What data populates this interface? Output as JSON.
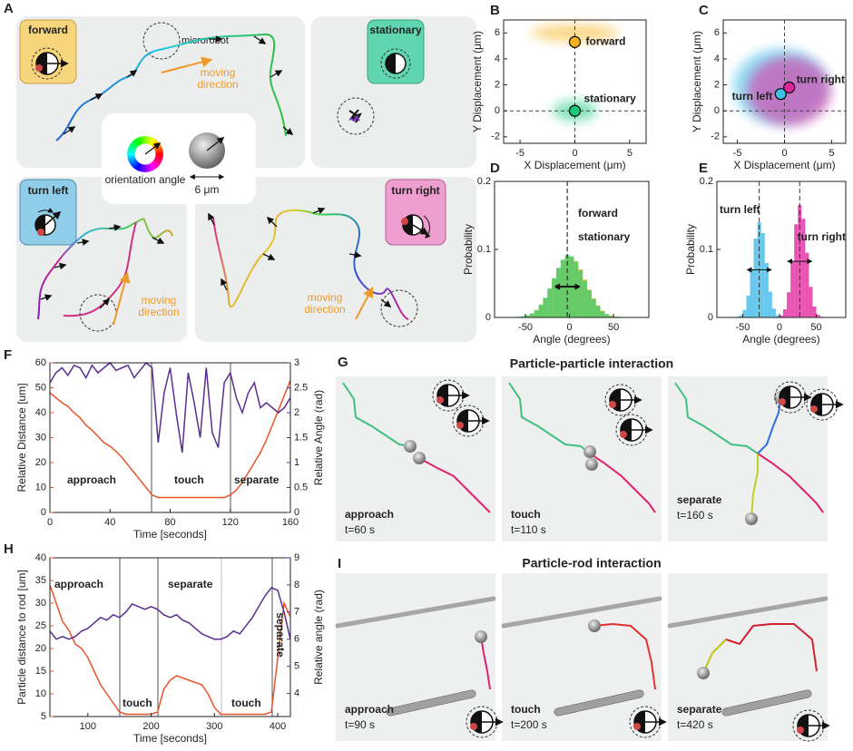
{
  "figure_a": {
    "panel": "A",
    "forward": "forward",
    "microrobot": "microrobot",
    "moving_direction": [
      "moving direction",
      "moving direction",
      "moving direction"
    ],
    "stationary": "stationary",
    "legend": {
      "orientation": "orientation angle",
      "size": "6 μm"
    },
    "turn_left": "turn left",
    "turn_right": "turn right"
  },
  "chart_data": [
    {
      "panel": "B",
      "type": "scatter",
      "xlabel": "X Displacement (μm)",
      "ylabel": "Y Displacement (μm)",
      "xlim": [
        -6.5,
        6.5
      ],
      "ylim": [
        -2.5,
        7
      ],
      "xticks": [
        -5,
        0,
        5
      ],
      "yticks": [
        -2,
        0,
        2,
        4,
        6
      ],
      "series": [
        {
          "name": "forward",
          "color": "#f5b41e",
          "x": [
            0
          ],
          "values": [
            5.3
          ]
        },
        {
          "name": "stationary",
          "color": "#19c97a",
          "x": [
            0
          ],
          "values": [
            0
          ]
        }
      ]
    },
    {
      "panel": "C",
      "type": "scatter",
      "xlabel": "X Displacement (μm)",
      "ylabel": "Y Displacement (μm)",
      "xlim": [
        -6.5,
        6.5
      ],
      "ylim": [
        -2.5,
        7
      ],
      "xticks": [
        -5,
        0,
        5
      ],
      "yticks": [
        -2,
        0,
        2,
        4,
        6
      ],
      "series": [
        {
          "name": "turn left",
          "color": "#3cc0e8",
          "x": [
            -0.4
          ],
          "values": [
            1.3
          ]
        },
        {
          "name": "turn right",
          "color": "#e0259c",
          "x": [
            0.5
          ],
          "values": [
            1.8
          ]
        }
      ]
    },
    {
      "panel": "D",
      "type": "histogram",
      "xlabel": "Angle (degrees)",
      "ylabel": "Probability",
      "xlim": [
        -85,
        90
      ],
      "ylim": [
        0,
        0.2
      ],
      "xticks": [
        -50,
        0,
        50
      ],
      "yticks": [
        0,
        0.1,
        0.2
      ],
      "bins": [
        -80,
        -75,
        -70,
        -65,
        -60,
        -55,
        -50,
        -45,
        -40,
        -35,
        -30,
        -25,
        -20,
        -15,
        -10,
        -5,
        0,
        5,
        10,
        15,
        20,
        25,
        30,
        35,
        40,
        45,
        50,
        55,
        60,
        65,
        70,
        75,
        80
      ],
      "series": [
        {
          "name": "forward",
          "color": "#f5b41e",
          "values": [
            0,
            0,
            0,
            0,
            0.001,
            0.001,
            0.003,
            0.005,
            0.01,
            0.018,
            0.028,
            0.041,
            0.056,
            0.071,
            0.083,
            0.089,
            0.089,
            0.083,
            0.071,
            0.056,
            0.041,
            0.028,
            0.018,
            0.01,
            0.005,
            0.003,
            0.001,
            0.001,
            0,
            0,
            0,
            0
          ]
        },
        {
          "name": "stationary",
          "color": "#3ccc70",
          "values": [
            0,
            0,
            0,
            0,
            0.001,
            0.002,
            0.003,
            0.006,
            0.011,
            0.019,
            0.029,
            0.043,
            0.058,
            0.073,
            0.085,
            0.092,
            0.09,
            0.082,
            0.069,
            0.054,
            0.04,
            0.027,
            0.017,
            0.009,
            0.005,
            0.002,
            0.001,
            0.001,
            0,
            0,
            0,
            0
          ]
        }
      ]
    },
    {
      "panel": "E",
      "type": "histogram",
      "xlabel": "Angle (degrees)",
      "ylabel": "Probability",
      "xlim": [
        -85,
        90
      ],
      "ylim": [
        0,
        0.2
      ],
      "xticks": [
        -50,
        0,
        50
      ],
      "yticks": [
        0,
        0.1,
        0.2
      ],
      "bins": [
        -80,
        -75,
        -70,
        -65,
        -60,
        -55,
        -50,
        -45,
        -40,
        -35,
        -30,
        -25,
        -20,
        -15,
        -10,
        -5,
        0,
        5,
        10,
        15,
        20,
        25,
        30,
        35,
        40,
        45,
        50,
        55,
        60,
        65,
        70,
        75,
        80
      ],
      "series": [
        {
          "name": "turn left",
          "color": "#3cb8e8",
          "values": [
            0,
            0,
            0,
            0,
            0.001,
            0.003,
            0.011,
            0.032,
            0.071,
            0.116,
            0.14,
            0.124,
            0.08,
            0.038,
            0.013,
            0.003,
            0.001,
            0,
            0,
            0,
            0,
            0,
            0,
            0,
            0,
            0,
            0,
            0,
            0,
            0,
            0,
            0
          ]
        },
        {
          "name": "turn right",
          "color": "#e0259c",
          "values": [
            0,
            0,
            0,
            0,
            0,
            0,
            0,
            0,
            0,
            0,
            0,
            0,
            0,
            0,
            0,
            0.001,
            0.003,
            0.012,
            0.037,
            0.083,
            0.137,
            0.165,
            0.145,
            0.095,
            0.045,
            0.016,
            0.004,
            0.001,
            0,
            0,
            0,
            0
          ]
        }
      ]
    },
    {
      "panel": "F",
      "type": "line",
      "xlabel": "Time [seconds]",
      "ylabel": "Relative Distance [um]",
      "y2label": "Relative Angle (rad)",
      "xlim": [
        0,
        160
      ],
      "ylim": [
        0,
        60
      ],
      "y2lim": [
        0,
        3
      ],
      "xticks": [
        0,
        40,
        80,
        120,
        160
      ],
      "yticks": [
        0,
        10,
        20,
        30,
        40,
        50,
        60
      ],
      "y2ticks": [
        0,
        0.5,
        1,
        1.5,
        2,
        2.5,
        3
      ],
      "annotations": [
        "approach",
        "touch",
        "separate"
      ],
      "x": [
        0,
        4,
        8,
        12,
        16,
        20,
        24,
        28,
        32,
        36,
        40,
        44,
        48,
        52,
        56,
        60,
        64,
        68,
        72,
        76,
        80,
        84,
        88,
        92,
        96,
        100,
        104,
        108,
        112,
        116,
        120,
        124,
        128,
        132,
        136,
        140,
        144,
        148,
        152,
        156,
        160
      ],
      "series": [
        {
          "color": "#e8552a",
          "values": [
            48,
            46,
            44,
            42.5,
            40,
            38,
            35,
            33,
            30.5,
            28,
            26.5,
            24.5,
            22,
            19,
            16,
            13,
            10,
            7,
            6,
            6,
            6,
            6,
            6,
            6,
            6,
            6,
            6,
            6,
            6,
            6,
            7,
            9,
            12,
            16,
            20,
            24,
            29,
            35,
            41,
            47,
            53
          ]
        },
        {
          "color": "#5c2d91",
          "axis": "y2",
          "values": [
            2.6,
            2.8,
            2.9,
            2.75,
            2.95,
            2.9,
            2.7,
            2.95,
            2.8,
            2.9,
            3.0,
            2.85,
            2.9,
            2.95,
            2.7,
            2.85,
            3.0,
            2.9,
            1.4,
            2.4,
            2.9,
            2.0,
            1.2,
            2.8,
            2.2,
            1.5,
            2.9,
            1.6,
            1.3,
            2.6,
            2.8,
            2.3,
            2.0,
            2.4,
            2.6,
            2.1,
            2.2,
            2.1,
            2.0,
            2.1,
            2.3
          ]
        }
      ]
    },
    {
      "panel": "H",
      "type": "line",
      "xlabel": "Time [seconds]",
      "ylabel": "Particle distance to rod [um]",
      "y2label": "Relative angle (rad)",
      "xlim": [
        40,
        420
      ],
      "ylim": [
        5,
        40
      ],
      "y2lim": [
        3.15,
        9
      ],
      "xticks": [
        100,
        200,
        300,
        400
      ],
      "yticks": [
        5,
        10,
        15,
        20,
        25,
        30,
        35,
        40
      ],
      "y2ticks": [
        4,
        5,
        6,
        7,
        8,
        9
      ],
      "annotations": [
        "approach",
        "separate",
        "touch",
        "touch",
        "separate"
      ],
      "x": [
        40,
        50,
        60,
        70,
        80,
        90,
        100,
        110,
        120,
        130,
        140,
        150,
        160,
        170,
        180,
        190,
        200,
        210,
        220,
        230,
        240,
        250,
        260,
        270,
        280,
        290,
        300,
        310,
        320,
        330,
        340,
        350,
        360,
        370,
        380,
        390,
        400,
        410,
        420
      ],
      "series": [
        {
          "color": "#e8552a",
          "values": [
            34,
            30,
            26,
            24,
            21,
            20,
            18,
            15,
            12,
            10,
            8,
            6,
            5.5,
            5.5,
            5.5,
            5.5,
            5.5,
            6,
            11,
            13,
            14,
            13.5,
            13,
            12.5,
            12,
            10,
            7,
            5.5,
            5.5,
            5.5,
            5.5,
            5.5,
            5.5,
            5.5,
            5.5,
            6,
            18,
            30,
            27
          ]
        },
        {
          "color": "#5c2d91",
          "axis": "y2",
          "values": [
            6.3,
            6.0,
            6.1,
            6.0,
            6.1,
            6.3,
            6.4,
            6.6,
            6.8,
            6.7,
            6.9,
            6.8,
            7.0,
            7.3,
            7.2,
            7.1,
            7.2,
            7.1,
            6.9,
            6.8,
            6.9,
            6.7,
            6.6,
            6.4,
            6.2,
            6.1,
            6.0,
            6.0,
            6.1,
            6.3,
            6.2,
            6.5,
            6.8,
            7.2,
            7.6,
            7.9,
            7.8,
            7.0,
            6.0
          ]
        }
      ]
    }
  ],
  "figure_g": {
    "panel": "G",
    "title": "Particle-particle interaction",
    "frames": [
      {
        "phase": "approach",
        "time": "t=60 s"
      },
      {
        "phase": "touch",
        "time": "t=110 s"
      },
      {
        "phase": "separate",
        "time": "t=160 s"
      }
    ]
  },
  "figure_i": {
    "panel": "I",
    "title": "Particle-rod interaction",
    "frames": [
      {
        "phase": "approach",
        "time": "t=90 s"
      },
      {
        "phase": "touch",
        "time": "t=200 s"
      },
      {
        "phase": "separate",
        "time": "t=420 s"
      }
    ]
  }
}
